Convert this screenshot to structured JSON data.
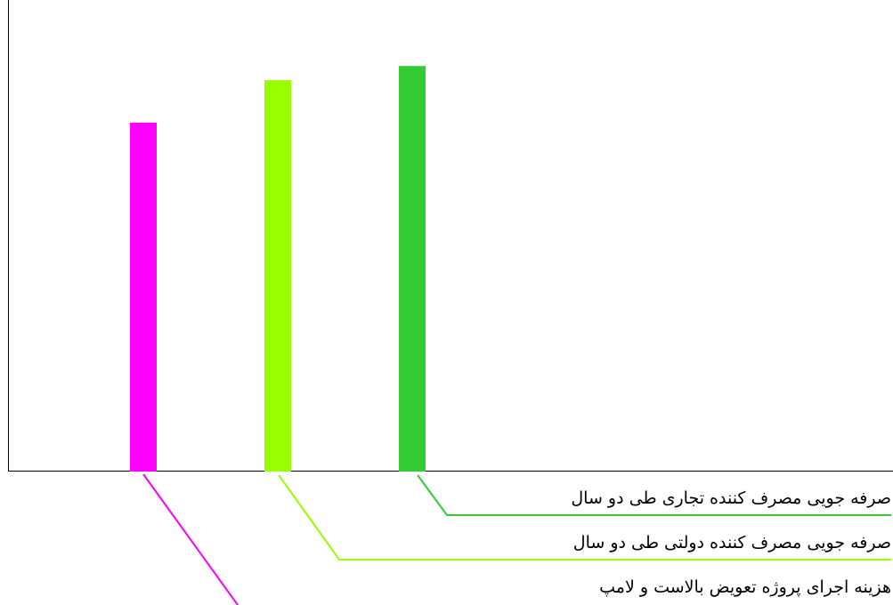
{
  "chart_data": {
    "type": "bar",
    "title": "",
    "xlabel": "",
    "ylabel": "",
    "grid": false,
    "categories": [
      "هزینه اجرای پروژه تعویض بالاست و لامپ",
      "صرفه جویی مصرف کننده دولتی طی دو سال",
      "صرفه جویی مصرف کننده تجاری طی دو سال"
    ],
    "values": [
      0.74,
      0.83,
      0.86
    ],
    "ylim": [
      0,
      1
    ],
    "colors": [
      "#ff00ff",
      "#99ff00",
      "#33cc33"
    ]
  }
}
